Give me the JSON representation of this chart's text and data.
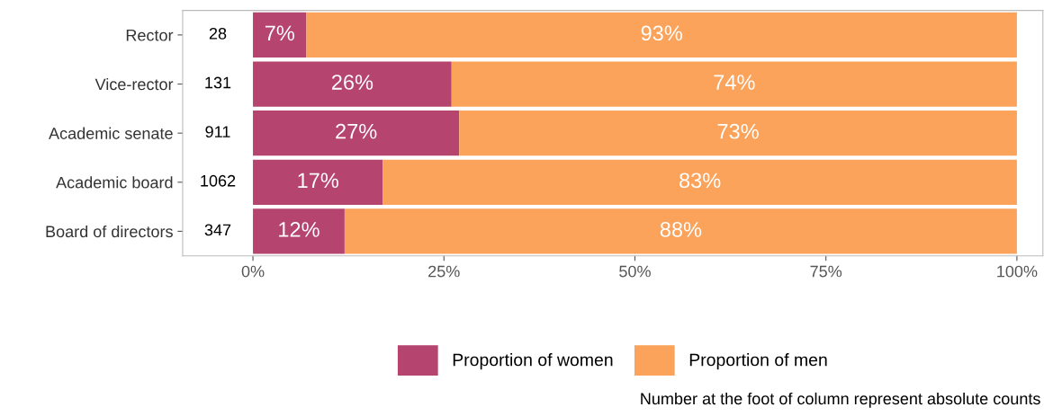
{
  "chart_data": {
    "type": "bar",
    "orientation": "horizontal",
    "stacked": true,
    "categories": [
      "Rector",
      "Vice-rector",
      "Academic senate",
      "Academic board",
      "Board of directors"
    ],
    "series": [
      {
        "name": "Proportion of women",
        "color": "#b5446e",
        "values": [
          7,
          26,
          27,
          17,
          12
        ],
        "value_labels": [
          "7%",
          "26%",
          "27%",
          "17%",
          "12%"
        ]
      },
      {
        "name": "Proportion of men",
        "color": "#fba35a",
        "values": [
          93,
          74,
          73,
          83,
          88
        ],
        "value_labels": [
          "93%",
          "74%",
          "73%",
          "83%",
          "88%"
        ]
      }
    ],
    "xlim": [
      -9.2,
      103.4
    ],
    "xticks": [
      {
        "value": 0,
        "label": "0%"
      },
      {
        "value": 25,
        "label": "25%"
      },
      {
        "value": 50,
        "label": "50%"
      },
      {
        "value": 75,
        "label": "75%"
      },
      {
        "value": 100,
        "label": "100%"
      }
    ],
    "legend": "bottom",
    "grid": false,
    "annotations": [
      "28",
      "131",
      "911",
      "1062",
      "347",
      "Number at the foot of column represent absolute counts"
    ]
  }
}
